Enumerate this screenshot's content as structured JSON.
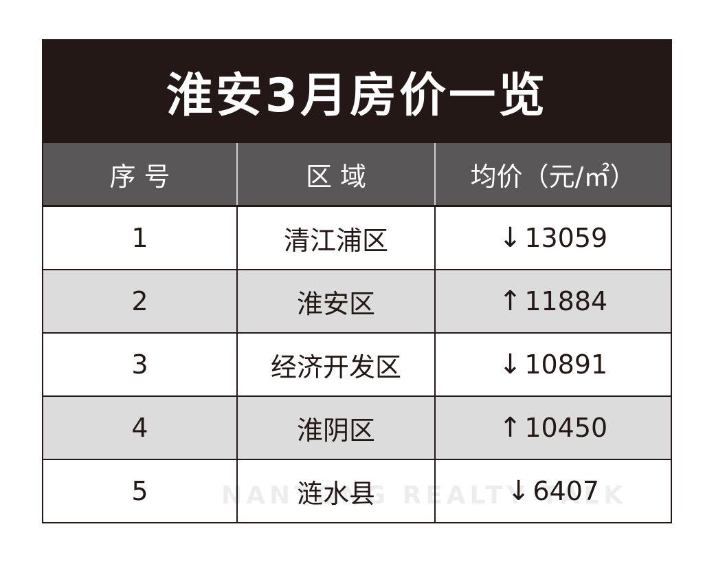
{
  "title": "淮安3月房价一览",
  "headers": [
    "序 号",
    "区 域",
    "均价（元/㎡）"
  ],
  "rows": [
    {
      "index": "1",
      "district": "清江浦区",
      "trend": "↓",
      "price": "13059"
    },
    {
      "index": "2",
      "district": "淮安区",
      "trend": "↑",
      "price": "11884"
    },
    {
      "index": "3",
      "district": "经济开发区",
      "trend": "↓",
      "price": "10891"
    },
    {
      "index": "4",
      "district": "淮阴区",
      "trend": "↑",
      "price": "10450"
    },
    {
      "index": "5",
      "district": "涟水县",
      "trend": "↓",
      "price": "6407"
    }
  ],
  "watermark": "NANTONG REALTY TALK",
  "colors": {
    "title_bg": "#231815",
    "header_bg": "#595757",
    "alt_row": "#dcdcdc"
  }
}
